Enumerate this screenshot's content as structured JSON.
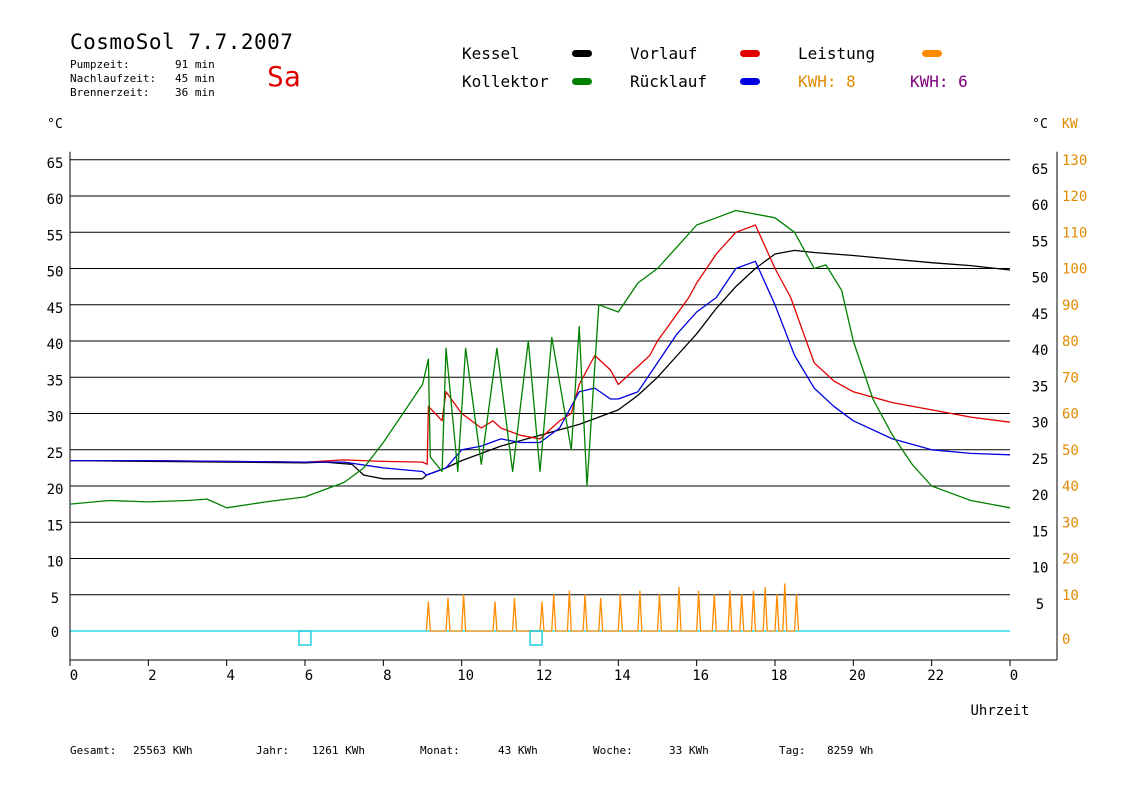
{
  "header": {
    "title": "CosmoSol 7.7.2007",
    "day": "Sa",
    "stats": [
      {
        "label": "Pumpzeit:",
        "value": "91 min"
      },
      {
        "label": "Nachlaufzeit:",
        "value": "45 min"
      },
      {
        "label": "Brennerzeit:",
        "value": "36 min"
      }
    ]
  },
  "legend": {
    "kessel": {
      "label": "Kessel",
      "color": "#000000"
    },
    "vorlauf": {
      "label": "Vorlauf",
      "color": "#e00000"
    },
    "leistung": {
      "label": "Leistung",
      "color": "#ff8c00"
    },
    "kollektor": {
      "label": "Kollektor",
      "color": "#008000"
    },
    "ruecklauf": {
      "label": "Rücklauf",
      "color": "#0000e0"
    },
    "kwh1": {
      "label": "KWH: 8",
      "color": "#ff8c00"
    },
    "kwh2": {
      "label": "KWH: 6",
      "color": "#800080"
    }
  },
  "footer": [
    {
      "label": "Gesamt:",
      "value": "25563 KWh"
    },
    {
      "label": "Jahr:",
      "value": "1261 KWh"
    },
    {
      "label": "Monat:",
      "value": "43 KWh"
    },
    {
      "label": "Woche:",
      "value": "33 KWh"
    },
    {
      "label": "Tag:",
      "value": "8259 Wh"
    }
  ],
  "chart_data": {
    "type": "line",
    "xlabel": "Uhrzeit",
    "x_ticks": [
      "0",
      "2",
      "4",
      "6",
      "8",
      "10",
      "12",
      "14",
      "16",
      "18",
      "20",
      "22",
      "0"
    ],
    "xlim": [
      0,
      24
    ],
    "y_left_label": "°C",
    "y_right_label": "°C",
    "y_right2_label": "KW",
    "ylim": [
      0,
      65
    ],
    "y_ticks_left": [
      "0",
      "5",
      "10",
      "15",
      "20",
      "25",
      "30",
      "35",
      "40",
      "45",
      "50",
      "55",
      "60",
      "65"
    ],
    "y_ticks_right": [
      "5",
      "10",
      "15",
      "20",
      "25",
      "30",
      "35",
      "40",
      "45",
      "50",
      "55",
      "60",
      "65"
    ],
    "y_ticks_kw": [
      "0",
      "10",
      "20",
      "30",
      "40",
      "50",
      "60",
      "70",
      "80",
      "90",
      "100",
      "110",
      "120",
      "130"
    ],
    "series": [
      {
        "name": "Kessel",
        "color": "#000000",
        "x": [
          0,
          2,
          4,
          6,
          6.5,
          7.2,
          7.5,
          8,
          9,
          9.1,
          9.6,
          10,
          10.5,
          11,
          12,
          13,
          13.5,
          14,
          14.5,
          15,
          15.5,
          16,
          16.5,
          17,
          17.5,
          18,
          18.5,
          19,
          20,
          21,
          22,
          23,
          24
        ],
        "y": [
          23.5,
          23.4,
          23.3,
          23.2,
          23.3,
          23.0,
          21.5,
          21.0,
          21.0,
          21.5,
          22.5,
          23.5,
          24.5,
          25.5,
          27.0,
          28.5,
          29.5,
          30.5,
          32.5,
          35.0,
          38.0,
          41.0,
          44.5,
          47.5,
          50.0,
          52.0,
          52.5,
          52.2,
          51.8,
          51.3,
          50.8,
          50.4,
          49.8
        ]
      },
      {
        "name": "Vorlauf",
        "color": "#e00000",
        "x": [
          0,
          2,
          4,
          6,
          7,
          8,
          9,
          9.12,
          9.15,
          9.5,
          9.6,
          10,
          10.5,
          10.8,
          11,
          11.5,
          12,
          12.5,
          12.8,
          13,
          13.4,
          13.8,
          14,
          14.4,
          14.8,
          15,
          15.4,
          15.8,
          16,
          16.5,
          17,
          17.5,
          18,
          18.4,
          18.6,
          19,
          19.5,
          20,
          21,
          22,
          23,
          24
        ],
        "y": [
          23.5,
          23.5,
          23.4,
          23.3,
          23.6,
          23.4,
          23.3,
          23.0,
          31.0,
          29.0,
          33.0,
          30.0,
          28.0,
          29.0,
          28.0,
          27.0,
          26.5,
          29.0,
          30.0,
          34.0,
          38.0,
          36.0,
          34.0,
          36.0,
          38.0,
          40.0,
          43.0,
          46.0,
          48.0,
          52.0,
          55.0,
          56.0,
          50.0,
          46.0,
          43.0,
          37.0,
          34.5,
          33.0,
          31.5,
          30.5,
          29.5,
          28.8
        ]
      },
      {
        "name": "Rücklauf",
        "color": "#0000e0",
        "x": [
          0,
          2,
          4,
          6,
          7,
          8,
          9,
          9.1,
          9.6,
          10,
          10.5,
          11,
          11.5,
          12,
          12.5,
          13,
          13.4,
          13.8,
          14,
          14.5,
          15,
          15.5,
          16,
          16.5,
          17,
          17.5,
          18,
          18.5,
          19,
          19.5,
          20,
          21,
          22,
          23,
          24
        ],
        "y": [
          23.5,
          23.5,
          23.4,
          23.3,
          23.3,
          22.5,
          22.0,
          21.5,
          22.5,
          25.0,
          25.5,
          26.5,
          26.0,
          26.0,
          28.0,
          33.0,
          33.5,
          32.0,
          32.0,
          33.0,
          37.0,
          41.0,
          44.0,
          46.0,
          50.0,
          51.0,
          45.0,
          38.0,
          33.5,
          31.0,
          29.0,
          26.5,
          25.0,
          24.5,
          24.3
        ]
      },
      {
        "name": "Kollektor",
        "color": "#008000",
        "x": [
          0,
          1,
          2,
          3,
          3.5,
          4,
          5,
          6,
          7,
          7.5,
          8,
          8.5,
          9,
          9.15,
          9.2,
          9.5,
          9.6,
          9.9,
          10.1,
          10.5,
          10.9,
          11.3,
          11.7,
          12,
          12.3,
          12.8,
          13,
          13.2,
          13.5,
          14,
          14.5,
          15,
          15.5,
          16,
          16.5,
          17,
          17.5,
          18,
          18.5,
          19,
          19.3,
          19.7,
          20,
          20.5,
          21,
          21.5,
          22,
          22.5,
          23,
          23.5,
          24
        ],
        "y": [
          17.5,
          18.0,
          17.8,
          18.0,
          18.2,
          17.0,
          17.8,
          18.5,
          20.5,
          22.5,
          26.0,
          30.0,
          34.0,
          37.5,
          24.0,
          22.0,
          39.0,
          22.0,
          39.0,
          23.0,
          39.0,
          22.0,
          40.0,
          22.0,
          40.5,
          25.0,
          42.0,
          20.0,
          45.0,
          44.0,
          48.0,
          50.0,
          53.0,
          56.0,
          57.0,
          58.0,
          57.5,
          57.0,
          55.0,
          50.0,
          50.5,
          47.0,
          40.0,
          32.0,
          27.0,
          23.0,
          20.0,
          19.0,
          18.0,
          17.5,
          17.0
        ]
      },
      {
        "name": "Leistung",
        "color": "#ff8c00",
        "x": [
          9.1,
          9.15,
          9.2,
          9.6,
          9.65,
          9.7,
          10,
          10.05,
          10.1,
          10.8,
          10.85,
          10.9,
          11.3,
          11.35,
          11.4,
          12,
          12.05,
          12.1,
          12.3,
          12.35,
          12.4,
          12.7,
          12.75,
          12.8,
          13.1,
          13.15,
          13.2,
          13.5,
          13.55,
          13.6,
          14,
          14.05,
          14.1,
          14.5,
          14.55,
          14.6,
          15,
          15.05,
          15.1,
          15.5,
          15.55,
          15.6,
          16,
          16.05,
          16.1,
          16.4,
          16.45,
          16.5,
          16.8,
          16.85,
          16.9,
          17.1,
          17.15,
          17.2,
          17.4,
          17.45,
          17.5,
          17.7,
          17.75,
          17.8,
          18,
          18.05,
          18.1,
          18.2,
          18.25,
          18.3,
          18.5,
          18.55,
          18.6
        ],
        "y": [
          0,
          4.0,
          0,
          0,
          4.5,
          0,
          0,
          5.0,
          0,
          0,
          4.0,
          0,
          0,
          4.5,
          0,
          0,
          4.0,
          0,
          0,
          5.0,
          0,
          0,
          5.5,
          0,
          0,
          5.0,
          0,
          0,
          4.5,
          0,
          0,
          5.0,
          0,
          0,
          5.5,
          0,
          0,
          5.0,
          0,
          0,
          6.0,
          0,
          0,
          5.5,
          0,
          0,
          5.0,
          0,
          0,
          5.5,
          0,
          0,
          5.0,
          0,
          0,
          5.5,
          0,
          0,
          6.0,
          0,
          0,
          5.0,
          0,
          0,
          6.5,
          0,
          0,
          5.0,
          0
        ]
      }
    ],
    "markers": [
      {
        "x": 6.0,
        "y": -1.0,
        "color": "#00c8d8"
      },
      {
        "x": 11.9,
        "y": -1.0,
        "color": "#00c8d8"
      }
    ]
  }
}
